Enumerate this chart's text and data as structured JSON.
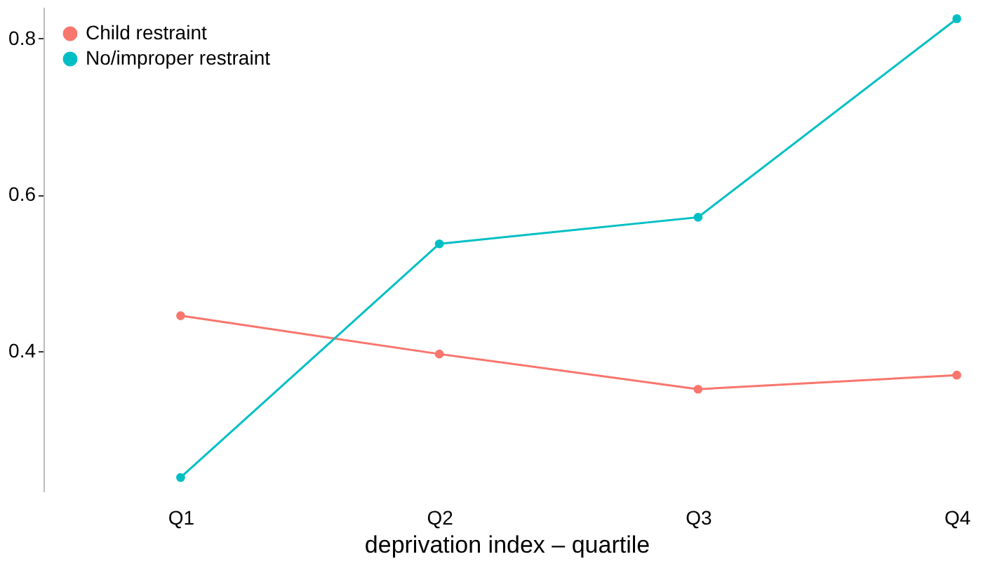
{
  "chart_data": {
    "type": "line",
    "xlabel": "deprivation index – quartile",
    "categories": [
      "Q1",
      "Q2",
      "Q3",
      "Q4"
    ],
    "series": [
      {
        "name": "Child restraint",
        "color": "#f8766d",
        "values": [
          0.445,
          0.396,
          0.351,
          0.369
        ]
      },
      {
        "name": "No/improper restraint",
        "color": "#00bfc4",
        "values": [
          0.238,
          0.537,
          0.571,
          0.825
        ]
      }
    ],
    "ylim": [
      0.22,
      0.84
    ],
    "yticks": [
      0.4,
      0.6,
      0.8
    ],
    "grid": false,
    "legend": "top left",
    "marker": "circle"
  }
}
